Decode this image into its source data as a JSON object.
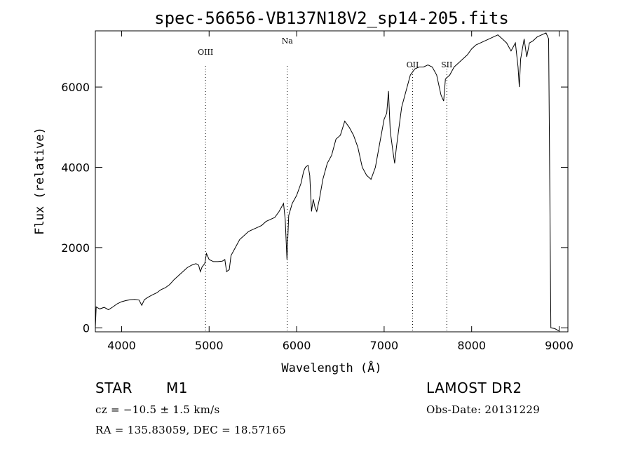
{
  "title": "spec-56656-VB137N18V2_sp14-205.fits",
  "info": {
    "object_class": "STAR",
    "subclass": "M1",
    "cz": "cz = −10.5 ± 1.5 km/s",
    "coords": "RA = 135.83059, DEC =  18.57165",
    "survey": "LAMOST DR2",
    "obs_date": "Obs-Date: 20131229"
  },
  "chart_data": {
    "type": "line",
    "title": "spec-56656-VB137N18V2_sp14-205.fits",
    "xlabel": "Wavelength (Å)",
    "ylabel": "Flux (relative)",
    "xlim": [
      3700,
      9100
    ],
    "ylim": [
      -100,
      7400
    ],
    "xticks": [
      4000,
      5000,
      6000,
      7000,
      8000,
      9000
    ],
    "yticks": [
      0,
      2000,
      4000,
      6000
    ],
    "grid": false,
    "line_color": "#000000",
    "marker_lines": [
      {
        "label": "OIII",
        "x": 4959
      },
      {
        "label": "Na",
        "x": 5893
      },
      {
        "label": "OII",
        "x": 7325
      },
      {
        "label": "SII",
        "x": 7716
      }
    ],
    "series": [
      {
        "points": [
          [
            3700,
            0
          ],
          [
            3710,
            520
          ],
          [
            3750,
            470
          ],
          [
            3800,
            510
          ],
          [
            3850,
            450
          ],
          [
            3900,
            520
          ],
          [
            3950,
            600
          ],
          [
            4000,
            650
          ],
          [
            4050,
            680
          ],
          [
            4100,
            700
          ],
          [
            4150,
            710
          ],
          [
            4200,
            690
          ],
          [
            4230,
            560
          ],
          [
            4260,
            700
          ],
          [
            4300,
            760
          ],
          [
            4350,
            820
          ],
          [
            4400,
            870
          ],
          [
            4450,
            950
          ],
          [
            4500,
            1000
          ],
          [
            4550,
            1080
          ],
          [
            4600,
            1200
          ],
          [
            4650,
            1300
          ],
          [
            4700,
            1400
          ],
          [
            4750,
            1500
          ],
          [
            4800,
            1560
          ],
          [
            4850,
            1600
          ],
          [
            4880,
            1560
          ],
          [
            4900,
            1400
          ],
          [
            4920,
            1520
          ],
          [
            4950,
            1600
          ],
          [
            4970,
            1850
          ],
          [
            5000,
            1700
          ],
          [
            5050,
            1650
          ],
          [
            5100,
            1650
          ],
          [
            5150,
            1660
          ],
          [
            5180,
            1700
          ],
          [
            5200,
            1400
          ],
          [
            5230,
            1450
          ],
          [
            5250,
            1800
          ],
          [
            5300,
            2000
          ],
          [
            5350,
            2200
          ],
          [
            5400,
            2300
          ],
          [
            5450,
            2400
          ],
          [
            5500,
            2450
          ],
          [
            5550,
            2500
          ],
          [
            5600,
            2550
          ],
          [
            5650,
            2650
          ],
          [
            5700,
            2700
          ],
          [
            5750,
            2750
          ],
          [
            5800,
            2900
          ],
          [
            5850,
            3100
          ],
          [
            5870,
            2700
          ],
          [
            5890,
            1700
          ],
          [
            5910,
            2800
          ],
          [
            5950,
            3100
          ],
          [
            6000,
            3300
          ],
          [
            6050,
            3600
          ],
          [
            6080,
            3900
          ],
          [
            6100,
            4000
          ],
          [
            6130,
            4050
          ],
          [
            6150,
            3800
          ],
          [
            6170,
            2900
          ],
          [
            6190,
            3200
          ],
          [
            6210,
            3000
          ],
          [
            6230,
            2900
          ],
          [
            6260,
            3200
          ],
          [
            6300,
            3700
          ],
          [
            6350,
            4100
          ],
          [
            6400,
            4300
          ],
          [
            6450,
            4700
          ],
          [
            6500,
            4800
          ],
          [
            6550,
            5150
          ],
          [
            6600,
            5000
          ],
          [
            6650,
            4800
          ],
          [
            6700,
            4500
          ],
          [
            6750,
            4000
          ],
          [
            6800,
            3800
          ],
          [
            6850,
            3700
          ],
          [
            6900,
            4000
          ],
          [
            6950,
            4600
          ],
          [
            7000,
            5200
          ],
          [
            7030,
            5350
          ],
          [
            7050,
            5900
          ],
          [
            7070,
            4900
          ],
          [
            7100,
            4400
          ],
          [
            7120,
            4100
          ],
          [
            7140,
            4500
          ],
          [
            7170,
            5000
          ],
          [
            7200,
            5500
          ],
          [
            7250,
            5900
          ],
          [
            7300,
            6300
          ],
          [
            7350,
            6450
          ],
          [
            7400,
            6500
          ],
          [
            7450,
            6500
          ],
          [
            7500,
            6550
          ],
          [
            7550,
            6500
          ],
          [
            7600,
            6300
          ],
          [
            7650,
            5800
          ],
          [
            7680,
            5650
          ],
          [
            7700,
            6200
          ],
          [
            7750,
            6300
          ],
          [
            7800,
            6500
          ],
          [
            7850,
            6600
          ],
          [
            7900,
            6700
          ],
          [
            7950,
            6800
          ],
          [
            8000,
            6950
          ],
          [
            8050,
            7050
          ],
          [
            8100,
            7100
          ],
          [
            8150,
            7150
          ],
          [
            8200,
            7200
          ],
          [
            8250,
            7250
          ],
          [
            8300,
            7300
          ],
          [
            8350,
            7200
          ],
          [
            8400,
            7100
          ],
          [
            8450,
            6900
          ],
          [
            8500,
            7100
          ],
          [
            8530,
            6500
          ],
          [
            8545,
            6000
          ],
          [
            8560,
            6700
          ],
          [
            8600,
            7200
          ],
          [
            8630,
            6750
          ],
          [
            8660,
            7100
          ],
          [
            8700,
            7150
          ],
          [
            8750,
            7250
          ],
          [
            8800,
            7300
          ],
          [
            8850,
            7350
          ],
          [
            8880,
            7200
          ],
          [
            8895,
            3000
          ],
          [
            8905,
            0
          ],
          [
            8950,
            -20
          ],
          [
            9000,
            -80
          ]
        ]
      }
    ]
  }
}
